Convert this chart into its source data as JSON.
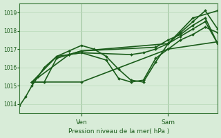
{
  "bg_color": "#d8ecd8",
  "grid_color": "#b8d8b8",
  "line_color": "#1a5c1a",
  "marker_color": "#1a5c1a",
  "tick_color": "#1a5c1a",
  "axis_color": "#3a7a3a",
  "xlabel_text": "Pression niveau de la mer( hPa )",
  "xtick_labels": [
    "Ven",
    "Sam"
  ],
  "xtick_positions": [
    30,
    72
  ],
  "xlim": [
    0,
    96
  ],
  "ylim": [
    1013.5,
    1019.5
  ],
  "yticks": [
    1014,
    1015,
    1016,
    1017,
    1018,
    1019
  ],
  "series": [
    {
      "x": [
        0,
        3,
        6,
        9,
        12,
        18,
        24,
        30,
        36,
        42,
        48,
        54,
        60,
        66,
        72,
        78,
        84,
        90,
        96
      ],
      "y": [
        1013.9,
        1014.4,
        1015.0,
        1015.5,
        1016.0,
        1016.6,
        1016.9,
        1017.2,
        1017.0,
        1016.6,
        1015.9,
        1015.3,
        1015.2,
        1016.3,
        1017.3,
        1017.9,
        1018.5,
        1019.1,
        1018.1
      ],
      "lw": 1.2
    },
    {
      "x": [
        6,
        12,
        18,
        24,
        30,
        42,
        48,
        54,
        60,
        66,
        72,
        78,
        84,
        90,
        96
      ],
      "y": [
        1015.2,
        1015.2,
        1016.5,
        1016.7,
        1016.8,
        1016.4,
        1015.4,
        1015.2,
        1015.3,
        1016.5,
        1017.0,
        1017.5,
        1017.8,
        1018.2,
        1017.9
      ],
      "lw": 1.2
    },
    {
      "x": [
        6,
        30,
        72,
        96
      ],
      "y": [
        1015.2,
        1015.2,
        1017.0,
        1017.4
      ],
      "lw": 1.2
    },
    {
      "x": [
        6,
        18,
        24,
        30,
        54,
        60,
        66,
        72,
        78,
        84,
        90,
        96
      ],
      "y": [
        1015.2,
        1016.6,
        1016.7,
        1016.8,
        1016.7,
        1016.8,
        1017.0,
        1017.3,
        1017.7,
        1018.1,
        1018.5,
        1017.3
      ],
      "lw": 1.2
    },
    {
      "x": [
        6,
        24,
        30,
        72,
        84,
        96
      ],
      "y": [
        1015.2,
        1016.7,
        1016.9,
        1017.3,
        1018.7,
        1019.1
      ],
      "lw": 1.2
    },
    {
      "x": [
        24,
        30,
        66,
        72,
        78,
        84,
        90,
        96
      ],
      "y": [
        1016.7,
        1016.9,
        1017.1,
        1017.5,
        1017.8,
        1018.3,
        1018.7,
        1017.3
      ],
      "lw": 1.2
    }
  ]
}
